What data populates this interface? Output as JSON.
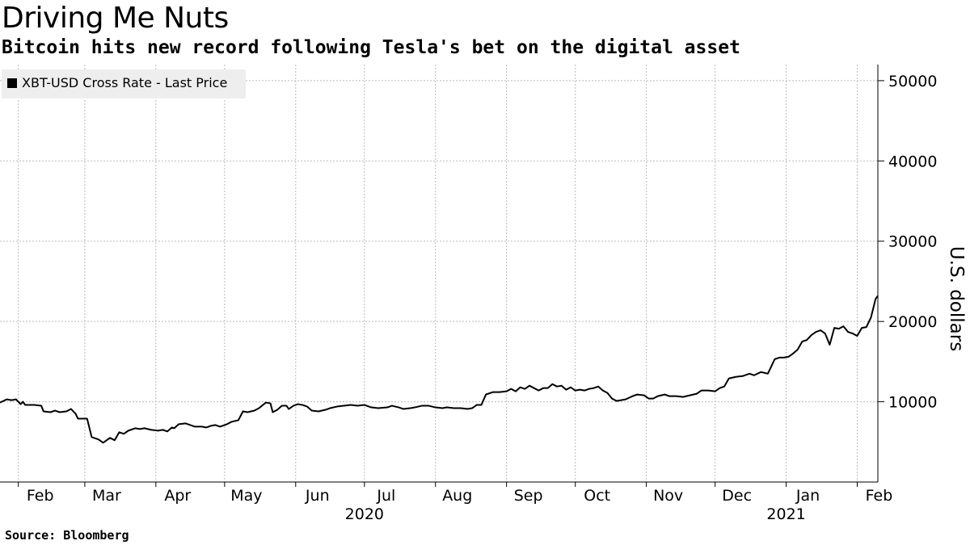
{
  "header": {
    "title": "Driving Me Nuts",
    "subtitle": "Bitcoin hits new record following Tesla's bet on the digital asset"
  },
  "footer": {
    "source": "Source:  Bloomberg"
  },
  "colors": {
    "line": "#000000",
    "grid": "#bbbbbb",
    "legend_bg": "#eeeeee"
  },
  "chart_data": {
    "type": "line",
    "title": "Driving Me Nuts",
    "subtitle": "Bitcoin hits new record following Tesla's bet on the digital asset",
    "ylabel": "U.S. dollars",
    "xlabel": "",
    "ylim": [
      0,
      52000
    ],
    "xlim": [
      "2020-01-24",
      "2021-02-10"
    ],
    "yticks": [
      10000,
      20000,
      30000,
      40000,
      50000
    ],
    "ytick_labels": [
      "10000",
      "20000",
      "30000",
      "40000",
      "50000"
    ],
    "y_axis_position": "right",
    "xticks": [
      {
        "label": "Feb",
        "date": "2020-02-01"
      },
      {
        "label": "Mar",
        "date": "2020-03-01"
      },
      {
        "label": "Apr",
        "date": "2020-04-01"
      },
      {
        "label": "May",
        "date": "2020-05-01"
      },
      {
        "label": "Jun",
        "date": "2020-06-01"
      },
      {
        "label": "Jul",
        "date": "2020-07-01"
      },
      {
        "label": "Aug",
        "date": "2020-08-01"
      },
      {
        "label": "Sep",
        "date": "2020-09-01"
      },
      {
        "label": "Oct",
        "date": "2020-10-01"
      },
      {
        "label": "Nov",
        "date": "2020-11-01"
      },
      {
        "label": "Dec",
        "date": "2020-12-01"
      },
      {
        "label": "Jan",
        "date": "2021-01-01"
      },
      {
        "label": "Feb",
        "date": "2021-02-01"
      }
    ],
    "year_labels": [
      {
        "label": "2020",
        "date": "2020-07-01"
      },
      {
        "label": "2021",
        "date": "2021-01-01"
      }
    ],
    "grid": true,
    "legend_position": "top-left",
    "series": [
      {
        "name": "XBT-USD Cross Rate - Last Price",
        "color": "#000000",
        "points": [
          [
            "2020-01-24",
            9900
          ],
          [
            "2020-01-27",
            10300
          ],
          [
            "2020-01-29",
            10200
          ],
          [
            "2020-01-31",
            10300
          ],
          [
            "2020-02-02",
            9700
          ],
          [
            "2020-02-03",
            10000
          ],
          [
            "2020-02-04",
            9600
          ],
          [
            "2020-02-08",
            9600
          ],
          [
            "2020-02-11",
            9500
          ],
          [
            "2020-02-12",
            8800
          ],
          [
            "2020-02-15",
            8700
          ],
          [
            "2020-02-17",
            8900
          ],
          [
            "2020-02-19",
            8700
          ],
          [
            "2020-02-22",
            8800
          ],
          [
            "2020-02-24",
            9100
          ],
          [
            "2020-02-26",
            8500
          ],
          [
            "2020-02-27",
            7900
          ],
          [
            "2020-03-02",
            7900
          ],
          [
            "2020-03-04",
            5600
          ],
          [
            "2020-03-07",
            5300
          ],
          [
            "2020-03-09",
            4900
          ],
          [
            "2020-03-11",
            5300
          ],
          [
            "2020-03-12",
            5500
          ],
          [
            "2020-03-14",
            5200
          ],
          [
            "2020-03-16",
            6200
          ],
          [
            "2020-03-18",
            6000
          ],
          [
            "2020-03-20",
            6400
          ],
          [
            "2020-03-23",
            6700
          ],
          [
            "2020-03-25",
            6600
          ],
          [
            "2020-03-27",
            6700
          ],
          [
            "2020-03-30",
            6500
          ],
          [
            "2020-04-02",
            6400
          ],
          [
            "2020-04-04",
            6500
          ],
          [
            "2020-04-06",
            6300
          ],
          [
            "2020-04-08",
            6800
          ],
          [
            "2020-04-09",
            6700
          ],
          [
            "2020-04-11",
            7200
          ],
          [
            "2020-04-14",
            7300
          ],
          [
            "2020-04-16",
            7100
          ],
          [
            "2020-04-18",
            6900
          ],
          [
            "2020-04-21",
            6900
          ],
          [
            "2020-04-23",
            6800
          ],
          [
            "2020-04-25",
            7000
          ],
          [
            "2020-04-27",
            7100
          ],
          [
            "2020-04-29",
            6900
          ],
          [
            "2020-05-02",
            7200
          ],
          [
            "2020-05-04",
            7500
          ],
          [
            "2020-05-07",
            7700
          ],
          [
            "2020-05-09",
            8800
          ],
          [
            "2020-05-11",
            8700
          ],
          [
            "2020-05-14",
            8900
          ],
          [
            "2020-05-16",
            9200
          ],
          [
            "2020-05-19",
            9900
          ],
          [
            "2020-05-21",
            9800
          ],
          [
            "2020-05-22",
            8700
          ],
          [
            "2020-05-24",
            9000
          ],
          [
            "2020-05-26",
            9500
          ],
          [
            "2020-05-28",
            9500
          ],
          [
            "2020-05-29",
            9100
          ],
          [
            "2020-05-31",
            9500
          ],
          [
            "2020-06-02",
            9700
          ],
          [
            "2020-06-04",
            9600
          ],
          [
            "2020-06-06",
            9400
          ],
          [
            "2020-06-08",
            8900
          ],
          [
            "2020-06-11",
            8800
          ],
          [
            "2020-06-14",
            9000
          ],
          [
            "2020-06-16",
            9200
          ],
          [
            "2020-06-19",
            9400
          ],
          [
            "2020-06-22",
            9500
          ],
          [
            "2020-06-25",
            9600
          ],
          [
            "2020-06-28",
            9500
          ],
          [
            "2020-07-01",
            9600
          ],
          [
            "2020-07-04",
            9300
          ],
          [
            "2020-07-07",
            9200
          ],
          [
            "2020-07-11",
            9300
          ],
          [
            "2020-07-13",
            9500
          ],
          [
            "2020-07-16",
            9300
          ],
          [
            "2020-07-18",
            9100
          ],
          [
            "2020-07-21",
            9200
          ],
          [
            "2020-07-23",
            9300
          ],
          [
            "2020-07-26",
            9500
          ],
          [
            "2020-07-29",
            9500
          ],
          [
            "2020-08-01",
            9300
          ],
          [
            "2020-08-04",
            9200
          ],
          [
            "2020-08-06",
            9300
          ],
          [
            "2020-08-09",
            9200
          ],
          [
            "2020-08-12",
            9200
          ],
          [
            "2020-08-15",
            9100
          ],
          [
            "2020-08-17",
            9200
          ],
          [
            "2020-08-19",
            9600
          ],
          [
            "2020-08-21",
            9600
          ],
          [
            "2020-08-23",
            10900
          ],
          [
            "2020-08-26",
            11200
          ],
          [
            "2020-08-29",
            11200
          ],
          [
            "2020-09-01",
            11300
          ],
          [
            "2020-09-03",
            11600
          ],
          [
            "2020-09-05",
            11300
          ],
          [
            "2020-09-07",
            11800
          ],
          [
            "2020-09-09",
            11600
          ],
          [
            "2020-09-11",
            12000
          ],
          [
            "2020-09-13",
            11700
          ],
          [
            "2020-09-15",
            11400
          ],
          [
            "2020-09-17",
            11700
          ],
          [
            "2020-09-19",
            11700
          ],
          [
            "2020-09-21",
            12200
          ],
          [
            "2020-09-23",
            11900
          ],
          [
            "2020-09-25",
            12000
          ],
          [
            "2020-09-27",
            11500
          ],
          [
            "2020-09-29",
            11800
          ],
          [
            "2020-10-01",
            11400
          ],
          [
            "2020-10-03",
            11500
          ],
          [
            "2020-10-05",
            11400
          ],
          [
            "2020-10-07",
            11600
          ],
          [
            "2020-10-09",
            11700
          ],
          [
            "2020-10-11",
            11900
          ],
          [
            "2020-10-13",
            11400
          ],
          [
            "2020-10-15",
            11100
          ],
          [
            "2020-10-17",
            10400
          ],
          [
            "2020-10-19",
            10100
          ],
          [
            "2020-10-21",
            10200
          ],
          [
            "2020-10-23",
            10300
          ],
          [
            "2020-10-26",
            10700
          ],
          [
            "2020-10-28",
            10900
          ],
          [
            "2020-10-31",
            10800
          ],
          [
            "2020-11-02",
            10400
          ],
          [
            "2020-11-04",
            10400
          ],
          [
            "2020-11-06",
            10700
          ],
          [
            "2020-11-09",
            10900
          ],
          [
            "2020-11-11",
            10700
          ],
          [
            "2020-11-14",
            10700
          ],
          [
            "2020-11-17",
            10600
          ],
          [
            "2020-11-20",
            10800
          ],
          [
            "2020-11-23",
            11000
          ],
          [
            "2020-11-25",
            11400
          ],
          [
            "2020-11-28",
            11400
          ],
          [
            "2020-12-01",
            11300
          ],
          [
            "2020-12-03",
            11700
          ],
          [
            "2020-12-05",
            11900
          ],
          [
            "2020-12-07",
            12900
          ],
          [
            "2020-12-10",
            13100
          ],
          [
            "2020-12-13",
            13200
          ],
          [
            "2020-12-16",
            13500
          ],
          [
            "2020-12-18",
            13300
          ],
          [
            "2020-12-21",
            13700
          ],
          [
            "2020-12-24",
            13500
          ],
          [
            "2020-12-27",
            15300
          ],
          [
            "2020-12-29",
            15500
          ],
          [
            "2020-12-31",
            15500
          ],
          [
            "2021-01-02",
            15600
          ],
          [
            "2021-01-04",
            16000
          ],
          [
            "2021-01-06",
            16500
          ],
          [
            "2021-01-08",
            17500
          ],
          [
            "2021-01-10",
            17700
          ],
          [
            "2021-01-12",
            18300
          ],
          [
            "2021-01-14",
            18700
          ],
          [
            "2021-01-16",
            18900
          ],
          [
            "2021-01-18",
            18500
          ],
          [
            "2021-01-20",
            17100
          ],
          [
            "2021-01-22",
            19200
          ],
          [
            "2021-01-24",
            19100
          ],
          [
            "2021-01-26",
            19400
          ],
          [
            "2021-01-28",
            18700
          ],
          [
            "2021-01-30",
            18500
          ],
          [
            "2021-02-01",
            18200
          ],
          [
            "2021-02-03",
            19200
          ],
          [
            "2021-02-05",
            19300
          ],
          [
            "2021-02-07",
            20500
          ],
          [
            "2021-02-09",
            22800
          ],
          [
            "2021-02-10",
            23200
          ]
        ]
      }
    ]
  }
}
